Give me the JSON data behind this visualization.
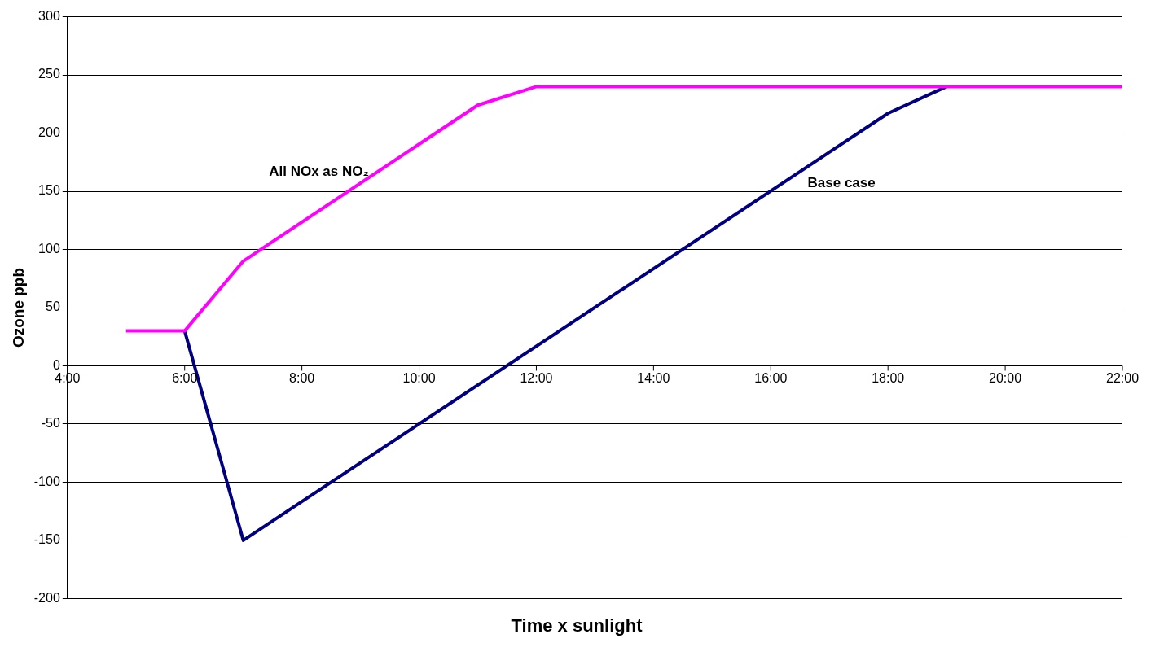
{
  "chart_data": {
    "type": "line",
    "xlabel": "Time x sunlight",
    "ylabel": "Ozone ppb",
    "xlim": [
      4,
      22
    ],
    "xticks": [
      {
        "value": 4,
        "label": "4:00"
      },
      {
        "value": 6,
        "label": "6:00"
      },
      {
        "value": 8,
        "label": "8:00"
      },
      {
        "value": 10,
        "label": "10:00"
      },
      {
        "value": 12,
        "label": "12:00"
      },
      {
        "value": 14,
        "label": "14:00"
      },
      {
        "value": 16,
        "label": "16:00"
      },
      {
        "value": 18,
        "label": "18:00"
      },
      {
        "value": 20,
        "label": "20:00"
      },
      {
        "value": 22,
        "label": "22:00"
      }
    ],
    "ylim": [
      -200,
      300
    ],
    "yticks": [
      -200,
      -150,
      -100,
      -50,
      0,
      50,
      100,
      150,
      200,
      250,
      300
    ],
    "grid": "y",
    "legend": false,
    "marker": "none",
    "line_style": "solid",
    "series": [
      {
        "name": "All NOx as NO₂",
        "color": "#ff00ff",
        "x": [
          5,
          6,
          7,
          11,
          12,
          22
        ],
        "values": [
          30,
          30,
          90,
          224,
          240,
          240
        ]
      },
      {
        "name": "Base case",
        "color": "#000080",
        "x": [
          6,
          7,
          18,
          19
        ],
        "values": [
          30,
          -150,
          217,
          240
        ]
      }
    ]
  }
}
